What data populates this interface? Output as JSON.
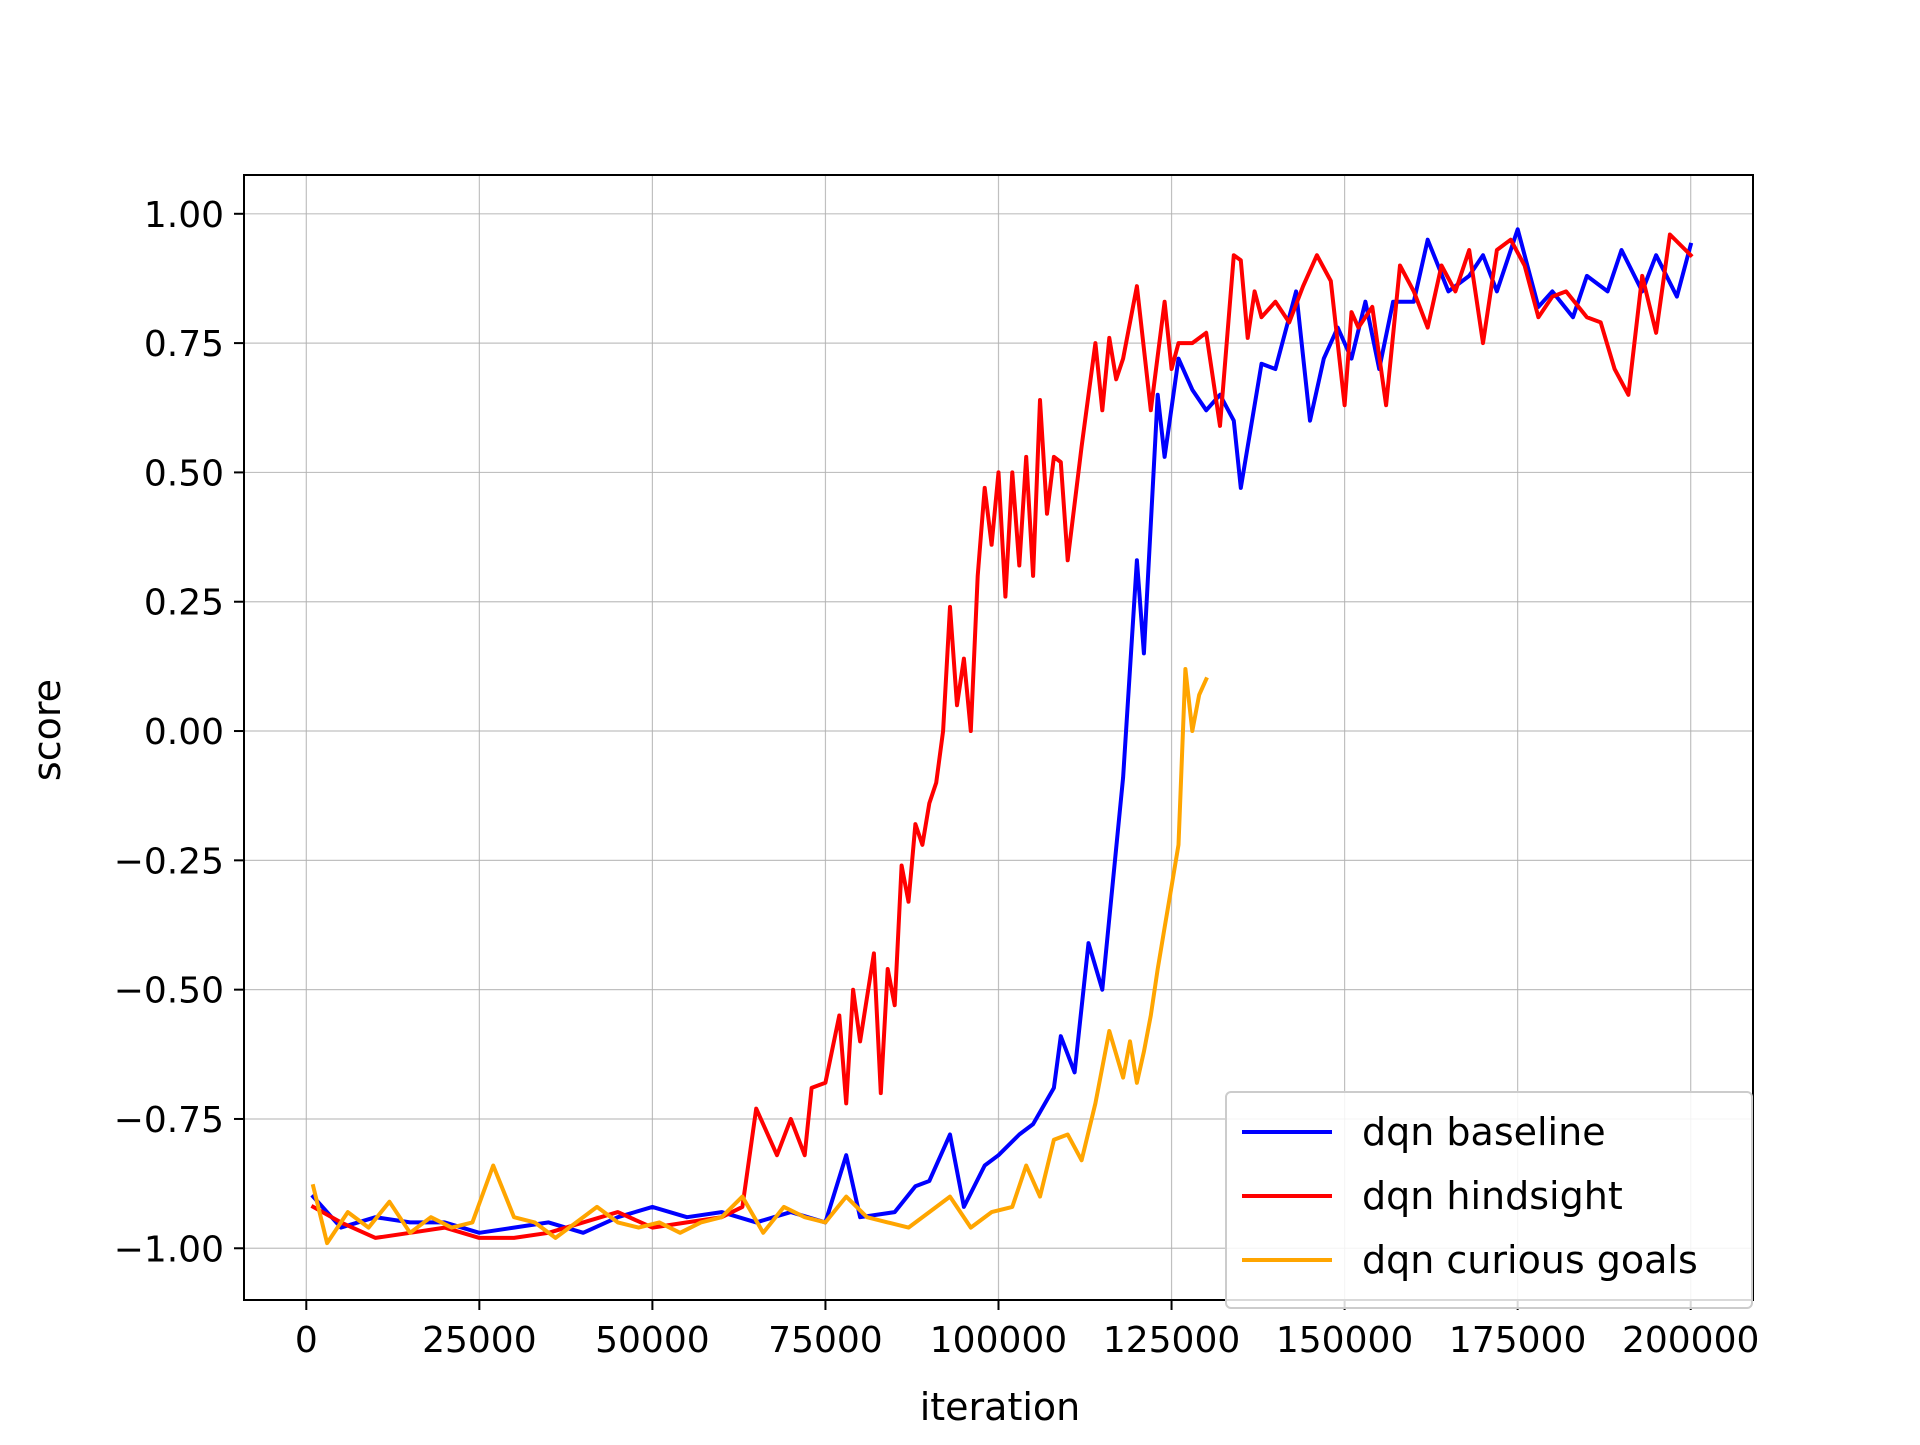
{
  "chart_data": {
    "type": "line",
    "title": "",
    "xlabel": "iteration",
    "ylabel": "score",
    "xlim": [
      -9000,
      209000
    ],
    "ylim": [
      -1.1,
      1.075
    ],
    "xticks": [
      0,
      25000,
      50000,
      75000,
      100000,
      125000,
      150000,
      175000,
      200000
    ],
    "xtick_labels": [
      "0",
      "25000",
      "50000",
      "75000",
      "100000",
      "125000",
      "150000",
      "175000",
      "200000"
    ],
    "yticks": [
      1.0,
      0.75,
      0.5,
      0.25,
      0.0,
      -0.25,
      -0.5,
      -0.75,
      -1.0
    ],
    "ytick_labels": [
      "1.00",
      "0.75",
      "0.50",
      "0.25",
      "0.00",
      "−0.25",
      "−0.50",
      "−0.75",
      "−1.00"
    ],
    "grid": true,
    "legend_position": "bottom-right",
    "series": [
      {
        "name": "dqn baseline",
        "color": "#0000ff",
        "x": [
          1000,
          5000,
          10000,
          15000,
          20000,
          25000,
          30000,
          35000,
          40000,
          45000,
          50000,
          55000,
          60000,
          65000,
          70000,
          75000,
          78000,
          80000,
          85000,
          88000,
          90000,
          93000,
          95000,
          98000,
          100000,
          103000,
          105000,
          108000,
          109000,
          111000,
          113000,
          115000,
          118000,
          120000,
          121000,
          123000,
          124000,
          126000,
          128000,
          130000,
          132000,
          134000,
          135000,
          136000,
          138000,
          140000,
          143000,
          145000,
          147000,
          149000,
          151000,
          153000,
          155000,
          157000,
          160000,
          162000,
          165000,
          168000,
          170000,
          172000,
          175000,
          178000,
          180000,
          183000,
          185000,
          188000,
          190000,
          193000,
          195000,
          198000,
          200000
        ],
        "y": [
          -0.9,
          -0.96,
          -0.94,
          -0.95,
          -0.95,
          -0.97,
          -0.96,
          -0.95,
          -0.97,
          -0.94,
          -0.92,
          -0.94,
          -0.93,
          -0.95,
          -0.93,
          -0.95,
          -0.82,
          -0.94,
          -0.93,
          -0.88,
          -0.87,
          -0.78,
          -0.92,
          -0.84,
          -0.82,
          -0.78,
          -0.76,
          -0.69,
          -0.59,
          -0.66,
          -0.41,
          -0.5,
          -0.09,
          0.33,
          0.15,
          0.65,
          0.53,
          0.72,
          0.66,
          0.62,
          0.65,
          0.6,
          0.47,
          0.55,
          0.71,
          0.7,
          0.85,
          0.6,
          0.72,
          0.78,
          0.72,
          0.83,
          0.7,
          0.83,
          0.83,
          0.95,
          0.85,
          0.88,
          0.92,
          0.85,
          0.97,
          0.82,
          0.85,
          0.8,
          0.88,
          0.85,
          0.93,
          0.85,
          0.92,
          0.84,
          0.94
        ]
      },
      {
        "name": "dqn hindsight",
        "color": "#ff0000",
        "x": [
          1000,
          5000,
          10000,
          15000,
          20000,
          25000,
          30000,
          35000,
          40000,
          45000,
          50000,
          55000,
          60000,
          63000,
          65000,
          68000,
          70000,
          72000,
          73000,
          75000,
          77000,
          78000,
          79000,
          80000,
          82000,
          83000,
          84000,
          85000,
          86000,
          87000,
          88000,
          89000,
          90000,
          91000,
          92000,
          93000,
          94000,
          95000,
          96000,
          97000,
          98000,
          99000,
          100000,
          101000,
          102000,
          103000,
          104000,
          105000,
          106000,
          107000,
          108000,
          109000,
          110000,
          112000,
          114000,
          115000,
          116000,
          117000,
          118000,
          120000,
          122000,
          124000,
          125000,
          126000,
          128000,
          130000,
          132000,
          134000,
          135000,
          136000,
          137000,
          138000,
          140000,
          142000,
          144000,
          146000,
          148000,
          150000,
          151000,
          152000,
          154000,
          156000,
          158000,
          160000,
          162000,
          164000,
          166000,
          168000,
          170000,
          172000,
          174000,
          176000,
          178000,
          180000,
          182000,
          185000,
          187000,
          189000,
          191000,
          193000,
          195000,
          197000,
          200000
        ],
        "y": [
          -0.92,
          -0.95,
          -0.98,
          -0.97,
          -0.96,
          -0.98,
          -0.98,
          -0.97,
          -0.95,
          -0.93,
          -0.96,
          -0.95,
          -0.94,
          -0.92,
          -0.73,
          -0.82,
          -0.75,
          -0.82,
          -0.69,
          -0.68,
          -0.55,
          -0.72,
          -0.5,
          -0.6,
          -0.43,
          -0.7,
          -0.46,
          -0.53,
          -0.26,
          -0.33,
          -0.18,
          -0.22,
          -0.14,
          -0.1,
          0.0,
          0.24,
          0.05,
          0.14,
          0.0,
          0.3,
          0.47,
          0.36,
          0.5,
          0.26,
          0.5,
          0.32,
          0.53,
          0.3,
          0.64,
          0.42,
          0.53,
          0.52,
          0.33,
          0.55,
          0.75,
          0.62,
          0.76,
          0.68,
          0.72,
          0.86,
          0.62,
          0.83,
          0.7,
          0.75,
          0.75,
          0.77,
          0.59,
          0.92,
          0.91,
          0.76,
          0.85,
          0.8,
          0.83,
          0.79,
          0.86,
          0.92,
          0.87,
          0.63,
          0.81,
          0.78,
          0.82,
          0.63,
          0.9,
          0.85,
          0.78,
          0.9,
          0.85,
          0.93,
          0.75,
          0.93,
          0.95,
          0.9,
          0.8,
          0.84,
          0.85,
          0.8,
          0.79,
          0.7,
          0.65,
          0.88,
          0.77,
          0.96,
          0.92
        ]
      },
      {
        "name": "dqn curious goals",
        "color": "#ffa500",
        "x": [
          1000,
          3000,
          6000,
          9000,
          12000,
          15000,
          18000,
          21000,
          24000,
          27000,
          30000,
          33000,
          36000,
          39000,
          42000,
          45000,
          48000,
          51000,
          54000,
          57000,
          60000,
          63000,
          66000,
          69000,
          72000,
          75000,
          78000,
          81000,
          84000,
          87000,
          90000,
          93000,
          96000,
          99000,
          102000,
          104000,
          106000,
          108000,
          110000,
          112000,
          114000,
          116000,
          118000,
          119000,
          120000,
          121000,
          122000,
          123000,
          124000,
          125000,
          126000,
          127000,
          128000,
          129000,
          130000
        ],
        "y": [
          -0.88,
          -0.99,
          -0.93,
          -0.96,
          -0.91,
          -0.97,
          -0.94,
          -0.96,
          -0.95,
          -0.84,
          -0.94,
          -0.95,
          -0.98,
          -0.95,
          -0.92,
          -0.95,
          -0.96,
          -0.95,
          -0.97,
          -0.95,
          -0.94,
          -0.9,
          -0.97,
          -0.92,
          -0.94,
          -0.95,
          -0.9,
          -0.94,
          -0.95,
          -0.96,
          -0.93,
          -0.9,
          -0.96,
          -0.93,
          -0.92,
          -0.84,
          -0.9,
          -0.79,
          -0.78,
          -0.83,
          -0.72,
          -0.58,
          -0.67,
          -0.6,
          -0.68,
          -0.62,
          -0.55,
          -0.46,
          -0.38,
          -0.3,
          -0.22,
          0.12,
          0.0,
          0.07,
          0.1
        ]
      }
    ]
  }
}
